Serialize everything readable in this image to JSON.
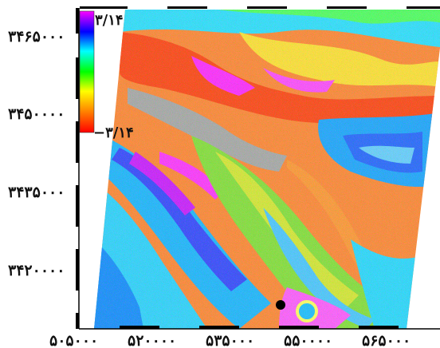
{
  "map": {
    "colorbar": {
      "max_label": "۳/۱۴",
      "min_label": "−۳/۱۴",
      "colors": [
        "#ff00ff",
        "#0000ff",
        "#00ffff",
        "#00ff00",
        "#ffff00",
        "#ff8000",
        "#ff0000"
      ]
    },
    "y_ticks": [
      {
        "label": "۳۴۶۵۰۰۰",
        "value": 3465000
      },
      {
        "label": "۳۴۵۰۰۰۰",
        "value": 3450000
      },
      {
        "label": "۳۴۳۵۰۰۰",
        "value": 3435000
      },
      {
        "label": "۳۴۲۰۰۰۰",
        "value": 3420000
      }
    ],
    "x_ticks": [
      {
        "label": "۵۰۵۰۰۰",
        "value": 505000
      },
      {
        "label": "۵۲۰۰۰۰",
        "value": 520000
      },
      {
        "label": "۵۳۵۰۰۰",
        "value": 535000
      },
      {
        "label": "۵۵۰۰۰۰",
        "value": 550000
      },
      {
        "label": "۵۶۵۰۰۰",
        "value": 565000
      }
    ],
    "marker": {
      "name": "reference-point",
      "color": "#000000"
    }
  }
}
